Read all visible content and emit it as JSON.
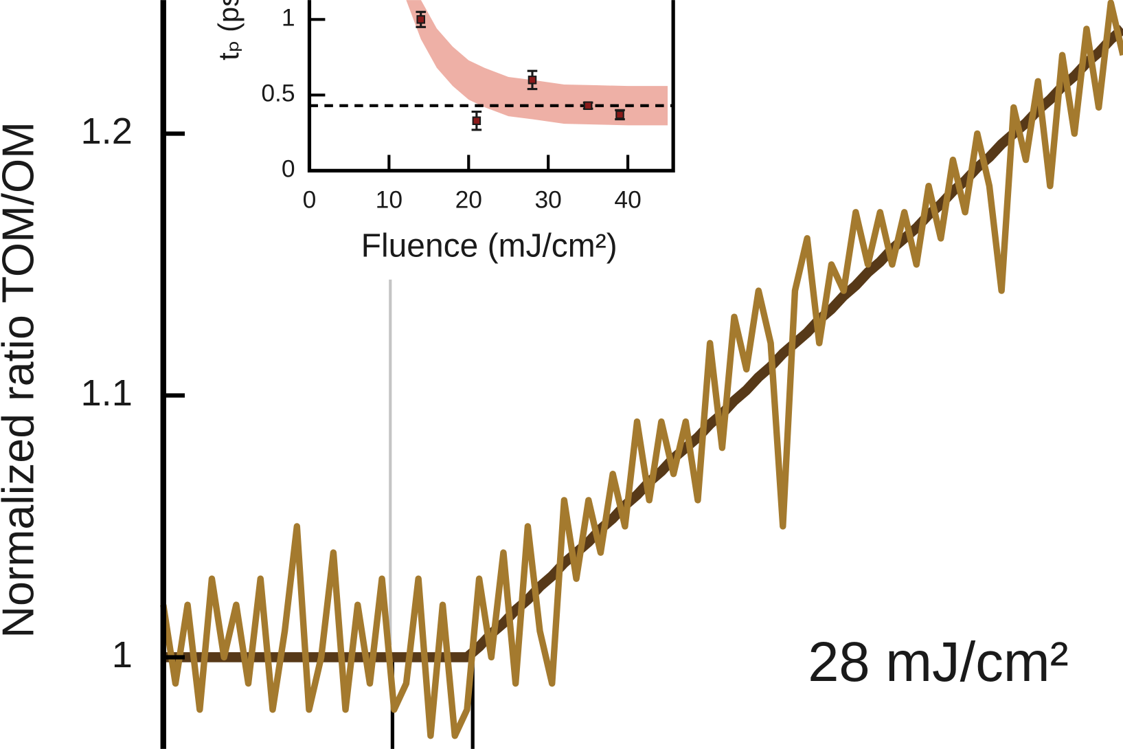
{
  "chart_data": [
    {
      "type": "line",
      "y_label": "Normalized ratio TOM/OM",
      "annotation": "28 mJ/cm²",
      "categories": [
        null,
        null,
        null,
        null,
        null,
        null,
        null,
        null,
        null,
        null,
        null,
        null,
        null,
        null,
        null,
        null,
        null,
        null,
        null,
        null,
        null,
        null,
        null,
        null,
        null,
        null,
        null,
        null,
        null,
        null,
        null,
        null,
        null,
        null,
        null,
        null,
        null,
        null,
        null,
        null,
        null,
        null,
        null,
        null,
        null,
        null,
        null,
        null,
        null,
        null,
        null,
        null,
        null,
        null,
        null,
        null,
        null,
        null,
        null,
        null,
        null,
        null,
        null,
        null,
        null,
        null,
        null,
        null,
        null,
        null,
        null,
        null,
        null,
        null,
        null,
        null,
        null,
        null,
        null,
        null
      ],
      "series": [
        {
          "color": "#a47a2e",
          "values": [
            1.02,
            0.99,
            1.02,
            0.98,
            1.03,
            1.0,
            1.02,
            0.99,
            1.03,
            0.98,
            1.01,
            1.05,
            0.98,
            1.0,
            1.04,
            0.98,
            1.02,
            0.99,
            1.03,
            0.98,
            0.99,
            1.03,
            0.97,
            1.02,
            0.97,
            0.98,
            1.03,
            1.0,
            1.04,
            0.99,
            1.05,
            1.01,
            0.99,
            1.06,
            1.03,
            1.06,
            1.04,
            1.07,
            1.05,
            1.09,
            1.06,
            1.09,
            1.07,
            1.09,
            1.06,
            1.12,
            1.08,
            1.13,
            1.11,
            1.14,
            1.12,
            1.05,
            1.14,
            1.16,
            1.12,
            1.15,
            1.14,
            1.17,
            1.15,
            1.17,
            1.15,
            1.17,
            1.15,
            1.18,
            1.16,
            1.19,
            1.17,
            1.2,
            1.18,
            1.14,
            1.21,
            1.19,
            1.22,
            1.18,
            1.23,
            1.2,
            1.24,
            1.21,
            1.25,
            1.23
          ]
        },
        {
          "color": "#573918",
          "values": [
            1.0,
            1.0,
            1.0,
            1.0,
            1.0,
            1.0,
            1.0,
            1.0,
            1.0,
            1.0,
            1.0,
            1.0,
            1.0,
            1.0,
            1.0,
            1.0,
            1.0,
            1.0,
            1.0,
            1.0,
            1.0,
            1.0,
            1.0,
            1.0,
            1.0,
            1.0,
            1.004,
            1.009,
            1.013,
            1.018,
            1.022,
            1.027,
            1.031,
            1.036,
            1.04,
            1.044,
            1.049,
            1.053,
            1.058,
            1.062,
            1.067,
            1.071,
            1.076,
            1.08,
            1.084,
            1.089,
            1.093,
            1.098,
            1.102,
            1.107,
            1.111,
            1.116,
            1.12,
            1.124,
            1.129,
            1.133,
            1.138,
            1.142,
            1.147,
            1.151,
            1.156,
            1.16,
            1.164,
            1.169,
            1.173,
            1.178,
            1.182,
            1.187,
            1.191,
            1.196,
            1.2,
            1.204,
            1.209,
            1.213,
            1.218,
            1.222,
            1.227,
            1.231,
            1.236,
            1.24
          ]
        }
      ],
      "ylim": [
        0.965,
        1.251
      ],
      "yticks": [
        1,
        1.1,
        1.2
      ]
    },
    {
      "type": "scatter",
      "x_label": "Fluence (mJ/cm²)",
      "y_label": "tₚ (ps)",
      "x": [
        14,
        21,
        28,
        35,
        39
      ],
      "values": [
        1.0,
        0.33,
        0.6,
        0.43,
        0.37
      ],
      "errors": [
        0.05,
        0.06,
        0.06,
        0.02,
        0.03
      ],
      "color": "#1a1a1a",
      "hline": 0.43,
      "band": {
        "color": "#eeb0a6",
        "x": [
          10,
          12,
          14,
          16,
          18,
          20,
          22,
          25,
          28,
          32,
          36,
          40,
          45
        ],
        "lower": [
          1.57,
          1.15,
          0.87,
          0.68,
          0.56,
          0.47,
          0.42,
          0.36,
          0.34,
          0.31,
          0.305,
          0.3,
          0.3
        ],
        "upper": [
          1.83,
          1.41,
          1.13,
          0.94,
          0.82,
          0.73,
          0.68,
          0.62,
          0.6,
          0.57,
          0.565,
          0.56,
          0.56
        ]
      },
      "xlim": [
        0,
        45.7
      ],
      "xticks": [
        0,
        10,
        20,
        30,
        40
      ],
      "ylim": [
        0,
        1.128
      ],
      "yticks": [
        0,
        0.5,
        1
      ]
    }
  ]
}
